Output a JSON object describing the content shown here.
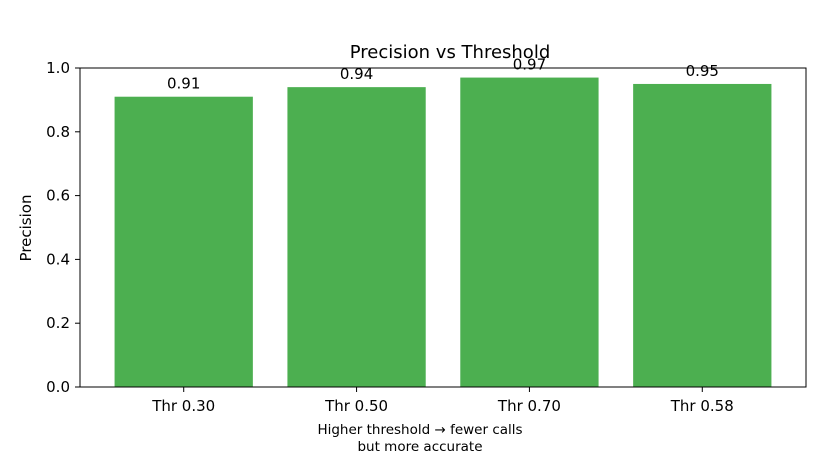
{
  "chart_data": {
    "type": "bar",
    "title": "Precision vs Threshold",
    "categories": [
      "Thr 0.30",
      "Thr 0.50",
      "Thr 0.70",
      "Thr 0.58"
    ],
    "values": [
      0.91,
      0.94,
      0.97,
      0.95
    ],
    "data_labels": [
      "0.91",
      "0.94",
      "0.97",
      "0.95"
    ],
    "ylabel": "Precision",
    "xlabel": "",
    "ylim": [
      0,
      1.0
    ],
    "yticks": [
      "0.0",
      "0.2",
      "0.4",
      "0.6",
      "0.8",
      "1.0"
    ],
    "caption_lines": [
      "Higher threshold → fewer calls",
      "but more accurate"
    ],
    "bar_color": "#4caf50",
    "grid": false,
    "legend": "none"
  }
}
